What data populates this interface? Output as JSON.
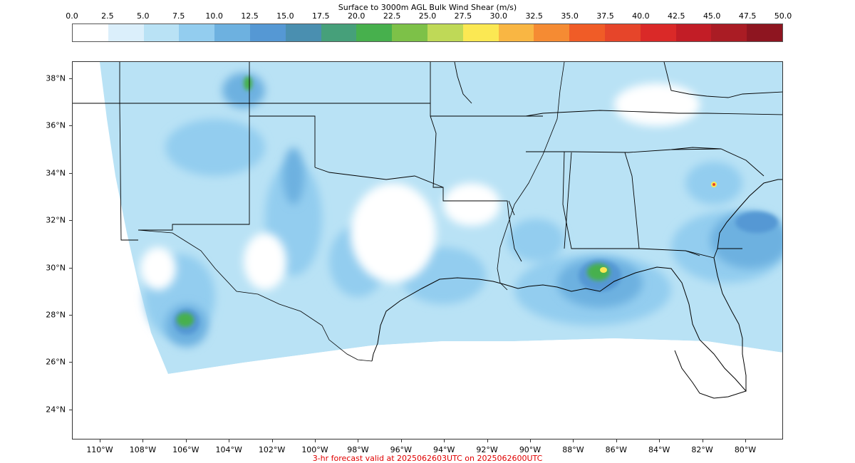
{
  "colorbar": {
    "title": "Surface to 3000m AGL Bulk Wind Shear (m/s)",
    "ticks": [
      "0.0",
      "2.5",
      "5.0",
      "7.5",
      "10.0",
      "12.5",
      "15.0",
      "17.5",
      "20.0",
      "22.5",
      "25.0",
      "27.5",
      "30.0",
      "32.5",
      "35.0",
      "37.5",
      "40.0",
      "42.5",
      "45.0",
      "47.5",
      "50.0"
    ],
    "colors": [
      "#ffffff",
      "#dbeffb",
      "#b9e2f5",
      "#93cdef",
      "#6db1e0",
      "#5598d4",
      "#4a8fb0",
      "#46a07a",
      "#47b04d",
      "#7dc148",
      "#bfd957",
      "#fbe853",
      "#f9b643",
      "#f58b33",
      "#f05c27",
      "#e6452a",
      "#da2928",
      "#c21d26",
      "#aa1c24",
      "#8e1520"
    ]
  },
  "map": {
    "lat_labels": [
      "38°N",
      "36°N",
      "34°N",
      "32°N",
      "30°N",
      "28°N",
      "26°N",
      "24°N"
    ],
    "lon_labels": [
      "110°W",
      "108°W",
      "106°W",
      "104°W",
      "102°W",
      "100°W",
      "98°W",
      "96°W",
      "94°W",
      "92°W",
      "90°W",
      "88°W",
      "86°W",
      "84°W",
      "82°W",
      "80°W"
    ],
    "lat_values": [
      38,
      36,
      34,
      32,
      30,
      28,
      26,
      24
    ],
    "lon_values": [
      -110,
      -108,
      -106,
      -104,
      -102,
      -100,
      -98,
      -96,
      -94,
      -92,
      -90,
      -88,
      -86,
      -84,
      -82,
      -80
    ]
  },
  "footer": {
    "caption": "3-hr forecast valid at 2025062603UTC on 2025062600UTC"
  }
}
